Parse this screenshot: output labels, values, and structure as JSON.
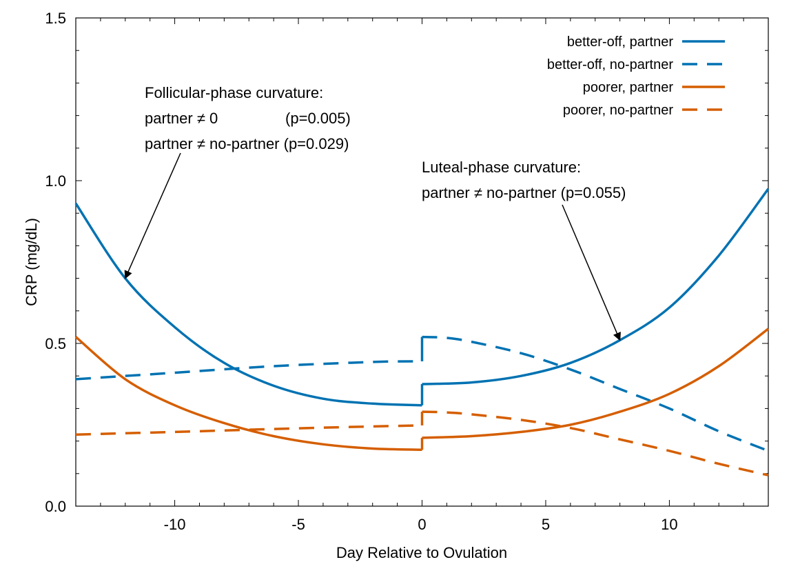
{
  "chart_data": {
    "type": "line",
    "xlabel": "Day Relative to Ovulation",
    "ylabel": "CRP (mg/dL)",
    "xlim": [
      -14,
      14
    ],
    "ylim": [
      0.0,
      1.5
    ],
    "grid": false,
    "legend_position": "top-right",
    "x_ticks": [
      -10,
      -5,
      0,
      5,
      10
    ],
    "x_tick_labels": [
      "-10",
      "-5",
      "0",
      "5",
      "10"
    ],
    "y_ticks": [
      0.0,
      0.5,
      1.0,
      1.5
    ],
    "y_tick_labels": [
      "0.0",
      "0.5",
      "1.0",
      "1.5"
    ],
    "series": [
      {
        "name": "better-off, partner",
        "color": "#0072b2",
        "style": "solid",
        "segments": [
          {
            "x": [
              -14,
              -12,
              -10,
              -8,
              -6,
              -4,
              -2,
              0
            ],
            "y": [
              0.93,
              0.7,
              0.55,
              0.44,
              0.37,
              0.33,
              0.315,
              0.31
            ]
          },
          {
            "x": [
              0,
              2,
              4,
              6,
              8,
              10,
              12,
              14
            ],
            "y": [
              0.375,
              0.38,
              0.4,
              0.44,
              0.51,
              0.61,
              0.77,
              0.975
            ]
          }
        ]
      },
      {
        "name": "better-off, no-partner",
        "color": "#0072b2",
        "style": "dashed",
        "segments": [
          {
            "x": [
              -14,
              -10,
              -6,
              -2,
              0
            ],
            "y": [
              0.39,
              0.41,
              0.43,
              0.443,
              0.445
            ]
          },
          {
            "x": [
              0,
              1,
              2,
              4,
              6,
              8,
              10,
              12,
              14
            ],
            "y": [
              0.52,
              0.517,
              0.505,
              0.47,
              0.42,
              0.36,
              0.3,
              0.23,
              0.17
            ]
          }
        ]
      },
      {
        "name": "poorer, partner",
        "color": "#d55e00",
        "style": "solid",
        "segments": [
          {
            "x": [
              -14,
              -12,
              -10,
              -8,
              -6,
              -4,
              -2,
              0
            ],
            "y": [
              0.52,
              0.39,
              0.31,
              0.255,
              0.215,
              0.19,
              0.177,
              0.173
            ]
          },
          {
            "x": [
              0,
              2,
              4,
              6,
              8,
              10,
              12,
              14
            ],
            "y": [
              0.21,
              0.215,
              0.228,
              0.25,
              0.29,
              0.345,
              0.43,
              0.545
            ]
          }
        ]
      },
      {
        "name": "poorer, no-partner",
        "color": "#d55e00",
        "style": "dashed",
        "segments": [
          {
            "x": [
              -14,
              -10,
              -6,
              -2,
              0
            ],
            "y": [
              0.22,
              0.228,
              0.237,
              0.245,
              0.248
            ]
          },
          {
            "x": [
              0,
              1,
              2,
              4,
              6,
              8,
              10,
              12,
              14
            ],
            "y": [
              0.29,
              0.288,
              0.282,
              0.265,
              0.24,
              0.205,
              0.17,
              0.13,
              0.095
            ]
          }
        ]
      }
    ],
    "annotations": [
      {
        "lines": [
          "Follicular-phase curvature:",
          "partner ≠ 0                (p=0.005)",
          "partner ≠ no-partner (p=0.029)"
        ],
        "arrow_to": {
          "x": -12,
          "y": 0.7
        }
      },
      {
        "lines": [
          "Luteal-phase curvature:",
          "partner ≠ no-partner (p=0.055)"
        ],
        "arrow_to": {
          "x": 8,
          "y": 0.51
        }
      }
    ]
  }
}
